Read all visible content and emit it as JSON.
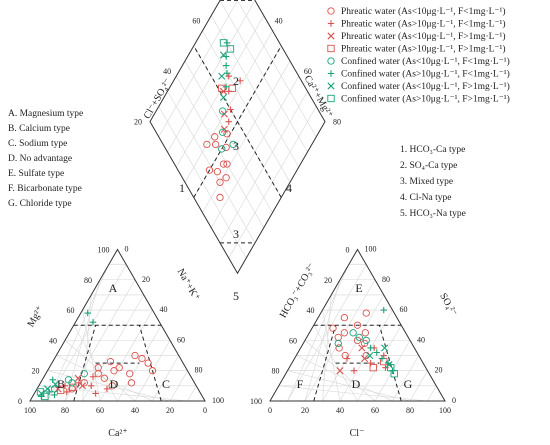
{
  "chart_data": {
    "type": "scatter",
    "title": "",
    "hydrochemical_types": [
      "A. Magnesium type",
      "B. Calcium type",
      "C. Sodium type",
      "D. No advantage",
      "E. Sulfate type",
      "F. Bicarbonate type",
      "G. Chloride type"
    ],
    "water_types": [
      "1. HCO₃-Ca type",
      "2. SO₄-Ca type",
      "3. Mixed type",
      "4. Cl-Na type",
      "5. HCO₃-Na type"
    ],
    "axes": {
      "cation_bottom": "Ca²⁺",
      "cation_left": "Mg²⁺",
      "cation_right": "Na⁺+K⁺",
      "anion_bottom": "Cl⁻",
      "anion_left": "HCO₃⁻+CO₃²⁻",
      "anion_right": "SO₄²⁻",
      "diamond_upper_left": "Cl⁻+SO₄²⁻",
      "diamond_upper_right": "Ca²⁺+Mg²⁺"
    },
    "tick_labels": [
      "0",
      "20",
      "40",
      "60",
      "80",
      "100"
    ],
    "regions": {
      "cation": [
        "A",
        "B",
        "C",
        "D"
      ],
      "anion": [
        "E",
        "F",
        "G",
        "D"
      ],
      "diamond": [
        "1",
        "2",
        "3",
        "4",
        "3",
        "5"
      ]
    },
    "series": [
      {
        "name": "Phreatic water (As<10μg·L⁻¹, F<1mg·L⁻¹)",
        "marker": "circle",
        "color": "#d9534f",
        "cation": [
          [
            45,
            30
          ],
          [
            50,
            28
          ],
          [
            40,
            22
          ],
          [
            38,
            20
          ],
          [
            55,
            25
          ],
          [
            30,
            18
          ],
          [
            35,
            15
          ],
          [
            48,
            18
          ],
          [
            25,
            12
          ],
          [
            60,
            20
          ],
          [
            42,
            10
          ],
          [
            20,
            8
          ],
          [
            52,
            12
          ],
          [
            33,
            26
          ],
          [
            28,
            22
          ]
        ],
        "anion": [
          [
            20,
            45
          ],
          [
            25,
            50
          ],
          [
            30,
            40
          ],
          [
            35,
            38
          ],
          [
            15,
            55
          ],
          [
            22,
            35
          ],
          [
            28,
            30
          ],
          [
            18,
            42
          ],
          [
            32,
            45
          ],
          [
            12,
            48
          ],
          [
            40,
            30
          ],
          [
            26,
            58
          ]
        ],
        "diamond": [
          [
            40,
            80
          ],
          [
            45,
            78
          ],
          [
            50,
            82
          ],
          [
            42,
            70
          ],
          [
            48,
            65
          ],
          [
            55,
            70
          ],
          [
            38,
            75
          ],
          [
            60,
            75
          ],
          [
            52,
            60
          ],
          [
            35,
            85
          ],
          [
            58,
            68
          ],
          [
            44,
            72
          ]
        ]
      },
      {
        "name": "Phreatic water (As>10μg·L⁻¹, F<1mg·L⁻¹)",
        "marker": "plus",
        "color": "#d9534f",
        "cation": [
          [
            30,
            10
          ],
          [
            22,
            12
          ],
          [
            18,
            6
          ],
          [
            40,
            8
          ],
          [
            28,
            16
          ],
          [
            15,
            10
          ],
          [
            35,
            5
          ]
        ],
        "anion": [
          [
            45,
            25
          ],
          [
            50,
            30
          ],
          [
            38,
            20
          ],
          [
            55,
            22
          ],
          [
            42,
            35
          ],
          [
            30,
            28
          ]
        ],
        "diamond": [
          [
            58,
            50
          ],
          [
            65,
            45
          ],
          [
            70,
            40
          ],
          [
            55,
            55
          ],
          [
            62,
            35
          ]
        ]
      },
      {
        "name": "Phreatic water (As<10μg·L⁻¹, F>1mg·L⁻¹)",
        "marker": "cross",
        "color": "#d9534f",
        "cation": [
          [
            20,
            15
          ],
          [
            25,
            10
          ],
          [
            12,
            8
          ]
        ],
        "anion": [
          [
            35,
            35
          ],
          [
            40,
            28
          ],
          [
            30,
            20
          ]
        ],
        "diamond": [
          [
            60,
            55
          ],
          [
            55,
            60
          ],
          [
            68,
            48
          ]
        ]
      },
      {
        "name": "Phreatic water (As>10μg·L⁻¹, F>1mg·L⁻¹)",
        "marker": "square",
        "color": "#d9534f",
        "cation": [
          [
            14,
            7
          ],
          [
            20,
            9
          ]
        ],
        "anion": [
          [
            48,
            22
          ],
          [
            52,
            26
          ]
        ],
        "diamond": [
          [
            64,
            42
          ],
          [
            70,
            48
          ]
        ]
      },
      {
        "name": "Confined water (As<10μg·L⁻¹, F<1mg·L⁻¹)",
        "marker": "circle",
        "color": "#1aa37a",
        "cation": [
          [
            18,
            12
          ],
          [
            22,
            18
          ],
          [
            15,
            14
          ],
          [
            10,
            8
          ]
        ],
        "anion": [
          [
            25,
            45
          ],
          [
            30,
            42
          ],
          [
            20,
            38
          ],
          [
            35,
            40
          ]
        ],
        "diamond": [
          [
            50,
            68
          ],
          [
            45,
            60
          ],
          [
            55,
            62
          ],
          [
            62,
            55
          ]
        ]
      },
      {
        "name": "Confined water (As>10μg·L⁻¹, F<1mg·L⁻¹)",
        "marker": "plus",
        "color": "#1aa37a",
        "cation": [
          [
            8,
            6
          ],
          [
            12,
            4
          ],
          [
            6,
            14
          ],
          [
            5,
            3
          ],
          [
            4,
            58
          ],
          [
            10,
            52
          ]
        ],
        "anion": [
          [
            40,
            35
          ],
          [
            45,
            32
          ],
          [
            50,
            28
          ],
          [
            60,
            20
          ],
          [
            55,
            25
          ],
          [
            35,
            60
          ]
        ],
        "diamond": [
          [
            72,
            40
          ],
          [
            78,
            35
          ],
          [
            68,
            45
          ],
          [
            82,
            30
          ],
          [
            75,
            38
          ]
        ]
      },
      {
        "name": "Confined water (As<10μg·L⁻¹, F>1mg·L⁻¹)",
        "marker": "cross",
        "color": "#1aa37a",
        "cation": [
          [
            6,
            8
          ],
          [
            9,
            11
          ],
          [
            4,
            5
          ]
        ],
        "anion": [
          [
            42,
            30
          ],
          [
            48,
            35
          ],
          [
            56,
            24
          ]
        ],
        "diamond": [
          [
            66,
            50
          ],
          [
            74,
            44
          ],
          [
            80,
            36
          ]
        ]
      },
      {
        "name": "Confined water (As>10μg·L⁻¹, F>1mg·L⁻¹)",
        "marker": "square",
        "color": "#1aa37a",
        "cation": [
          [
            3,
            6
          ],
          [
            7,
            3
          ]
        ],
        "anion": [
          [
            58,
            22
          ],
          [
            62,
            18
          ]
        ],
        "diamond": [
          [
            84,
            32
          ],
          [
            78,
            30
          ]
        ]
      }
    ]
  }
}
